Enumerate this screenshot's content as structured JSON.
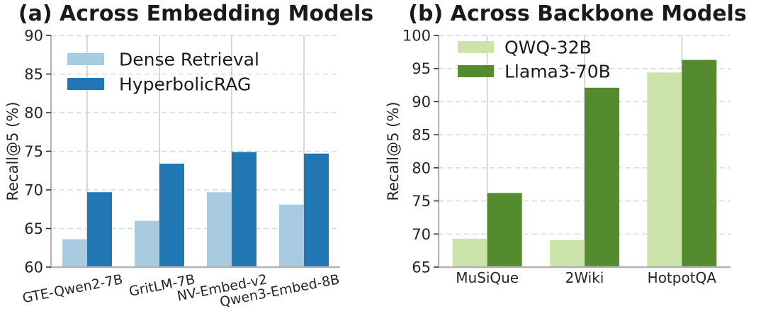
{
  "figure": {
    "ylabel": "Recall@5 (%)"
  },
  "chart_data": [
    {
      "type": "bar",
      "title": "(a) Across Embedding Models",
      "xlabel": "",
      "ylabel": "Recall@5 (%)",
      "ylim": [
        60,
        90
      ],
      "yticks": [
        60,
        65,
        70,
        75,
        80,
        85,
        90
      ],
      "categories": [
        "GTE-Qwen2-7B",
        "GritLM-7B",
        "NV-Embed-v2",
        "Qwen3-Embed-8B"
      ],
      "series": [
        {
          "name": "Dense Retrieval",
          "color": "#a9cbe2",
          "values": [
            63.6,
            66.0,
            69.7,
            68.1
          ]
        },
        {
          "name": "HyperbolicRAG",
          "color": "#2176b4",
          "values": [
            69.7,
            73.4,
            74.9,
            74.7
          ]
        }
      ],
      "legend_position": "upper-left",
      "grid": {
        "horizontal": "dashed",
        "vertical": "solid"
      },
      "xtick_rotation_deg": 11
    },
    {
      "type": "bar",
      "title": "(b) Across Backbone Models",
      "xlabel": "",
      "ylabel": "Recall@5 (%)",
      "ylim": [
        65,
        100
      ],
      "yticks": [
        65,
        70,
        75,
        80,
        85,
        90,
        95,
        100
      ],
      "categories": [
        "MuSiQue",
        "2Wiki",
        "HotpotQA"
      ],
      "series": [
        {
          "name": "QWQ-32B",
          "color": "#cce3a9",
          "values": [
            69.3,
            69.1,
            94.4
          ]
        },
        {
          "name": "Llama3-70B",
          "color": "#538b2e",
          "values": [
            76.2,
            92.1,
            96.3
          ]
        }
      ],
      "legend_position": "upper-left",
      "grid": {
        "horizontal": "dashed",
        "vertical": "solid"
      },
      "xtick_rotation_deg": 0
    }
  ],
  "colors": {
    "title_text": "#1a1a1a",
    "tick_text": "#262626",
    "grid_dashed": "#d9d9d9",
    "grid_solid": "#cfcfcf",
    "spine": "#b3b3b3",
    "tick_mark": "#333333"
  }
}
